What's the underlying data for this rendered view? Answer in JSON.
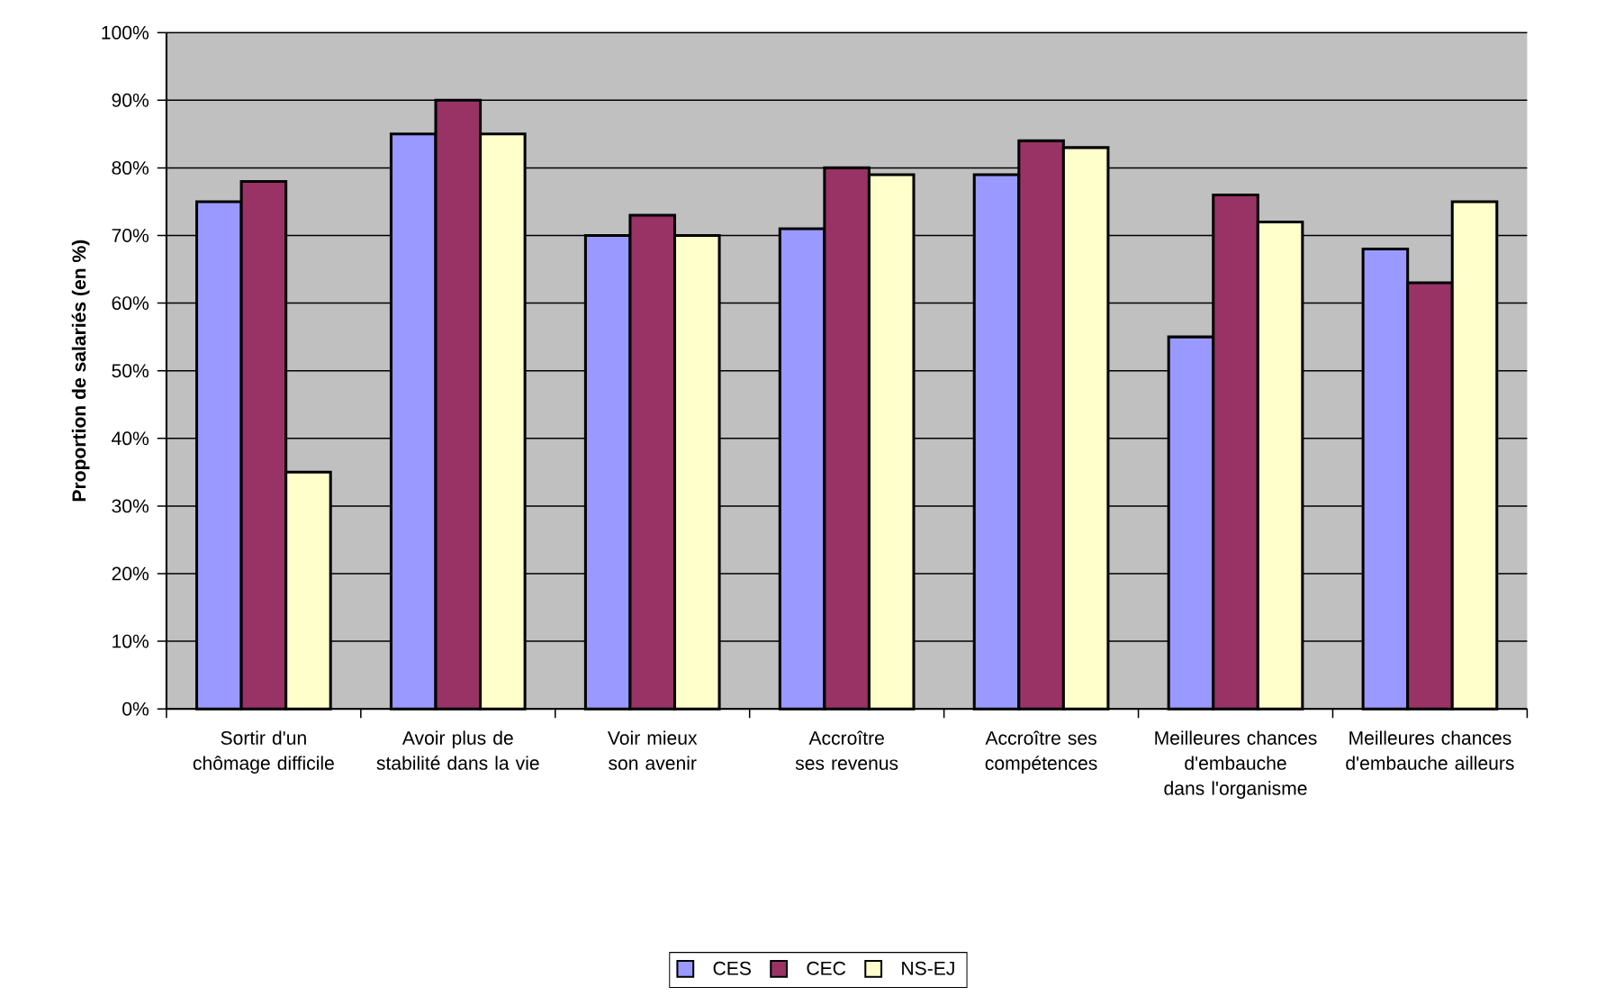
{
  "chart_data": {
    "type": "bar",
    "ylabel": "Proportion de salariés (en %)",
    "categories": [
      "Sortir d'un chômage difficile",
      "Avoir plus de stabilité dans la vie",
      "Voir mieux son avenir",
      "Accroître ses revenus",
      "Accroître ses compétences",
      "Meilleures chances d'embauche dans l'organisme",
      "Meilleures chances d'embauche ailleurs"
    ],
    "series": [
      {
        "name": "CES",
        "color": "#9999ff",
        "values": [
          75,
          85,
          70,
          71,
          79,
          55,
          68
        ]
      },
      {
        "name": "CEC",
        "color": "#993366",
        "values": [
          78,
          90,
          73,
          80,
          84,
          76,
          63
        ]
      },
      {
        "name": "NS-EJ",
        "color": "#ffffcc",
        "values": [
          35,
          85,
          70,
          79,
          83,
          72,
          75
        ]
      }
    ],
    "ylim": [
      0,
      100
    ],
    "yticks": [
      {
        "value": 0,
        "label": "0%"
      },
      {
        "value": 10,
        "label": "10%"
      },
      {
        "value": 20,
        "label": "20%"
      },
      {
        "value": 30,
        "label": "30%"
      },
      {
        "value": 40,
        "label": "40%"
      },
      {
        "value": 50,
        "label": "50%"
      },
      {
        "value": 60,
        "label": "60%"
      },
      {
        "value": 70,
        "label": "70%"
      },
      {
        "value": 80,
        "label": "80%"
      },
      {
        "value": 90,
        "label": "90%"
      },
      {
        "value": 100,
        "label": "100%"
      }
    ],
    "grid": "y",
    "legend": "bottom"
  }
}
